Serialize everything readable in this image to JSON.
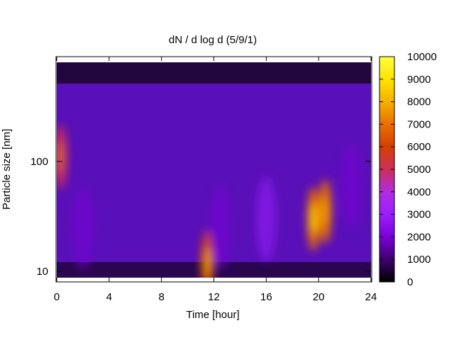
{
  "chart_data": {
    "type": "heatmap",
    "title": "dN / d log d (5/9/1)",
    "xlabel": "Time [hour]",
    "ylabel": "Particle size [nm]",
    "xlim": [
      0,
      24
    ],
    "ylim": [
      8,
      900
    ],
    "y_scale": "log",
    "x_ticks": [
      0,
      4,
      8,
      12,
      16,
      20,
      24
    ],
    "y_ticks": [
      10,
      100
    ],
    "colorbar": {
      "min": 0,
      "max": 10000,
      "ticks": [
        0,
        1000,
        2000,
        3000,
        4000,
        5000,
        6000,
        7000,
        8000,
        9000,
        10000
      ],
      "palette": [
        "#000000",
        "#3c006e",
        "#7a00d8",
        "#9b1fff",
        "#b02de0",
        "#cc2f5a",
        "#d44000",
        "#e87000",
        "#f5b000",
        "#ffe400",
        "#ffff40"
      ]
    },
    "features": [
      {
        "x": 0.3,
        "y_nm": 110,
        "value": 5200
      },
      {
        "x": 11.5,
        "y_nm": 12,
        "value": 6000
      },
      {
        "x": 19.6,
        "y_nm": 30,
        "value": 7200
      },
      {
        "x": 20.5,
        "y_nm": 35,
        "value": 6800
      },
      {
        "x": 16.0,
        "y_nm": 30,
        "value": 2600
      },
      {
        "x": 12.5,
        "y_nm": 25,
        "value": 2400
      },
      {
        "x": 2.0,
        "y_nm": 25,
        "value": 2200
      },
      {
        "x": 22.5,
        "y_nm": 60,
        "value": 2200
      }
    ],
    "grid": false,
    "legend": "none"
  }
}
